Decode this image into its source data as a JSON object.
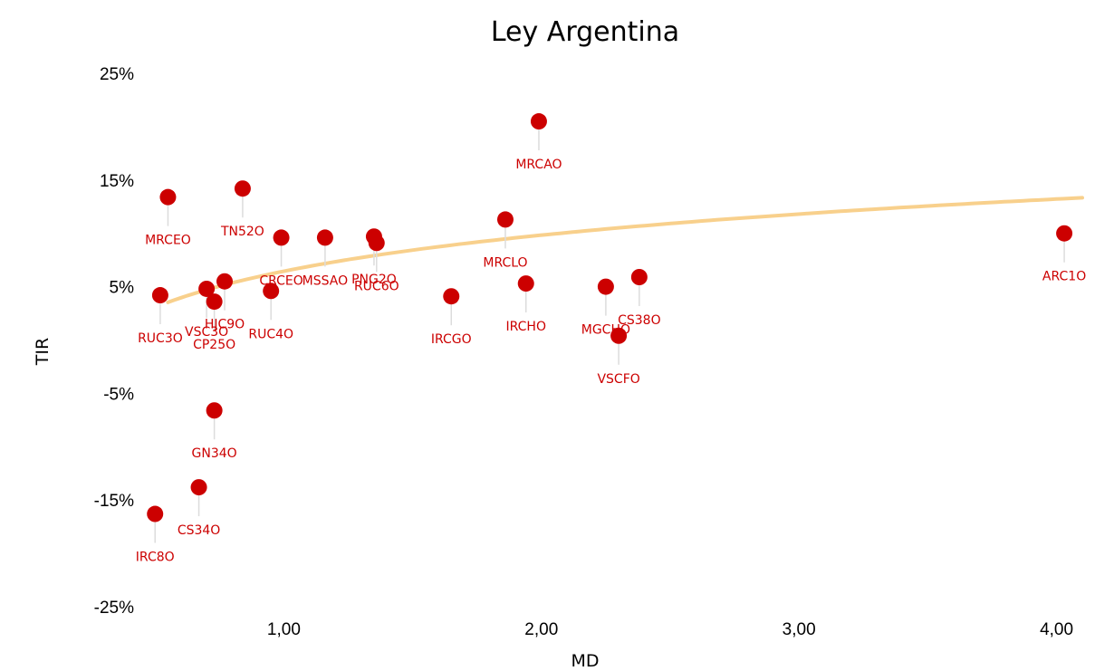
{
  "chart_data": {
    "type": "scatter",
    "title": "Ley Argentina",
    "xlabel": "MD",
    "ylabel": "TIR",
    "xlim": [
      0.45,
      4.1
    ],
    "ylim": [
      -25,
      25
    ],
    "x_ticks": [
      1,
      2,
      3,
      4
    ],
    "x_tick_labels": [
      "1,00",
      "2,00",
      "3,00",
      "4,00"
    ],
    "y_ticks": [
      -25,
      -15,
      -5,
      5,
      15,
      25
    ],
    "y_tick_labels": [
      "-25%",
      "-15%",
      "-5%",
      "5%",
      "15%",
      "25%"
    ],
    "grid": false,
    "legend": "none",
    "point_color": "#cc0000",
    "trend_color": "#f8d08c",
    "trend": {
      "type": "logarithmic",
      "a": 6.45,
      "b": 4.88
    },
    "points": [
      {
        "label": "MRCEO",
        "x": 0.55,
        "y": 13.4,
        "label_pos": "below"
      },
      {
        "label": "RUC3O",
        "x": 0.52,
        "y": 4.2,
        "label_pos": "below"
      },
      {
        "label": "IRC8O",
        "x": 0.5,
        "y": -16.3,
        "label_pos": "below"
      },
      {
        "label": "CS34O",
        "x": 0.67,
        "y": -13.8,
        "label_pos": "below"
      },
      {
        "label": "GN34O",
        "x": 0.73,
        "y": -6.6,
        "label_pos": "below"
      },
      {
        "label": "VSC3O",
        "x": 0.7,
        "y": 4.8,
        "label_pos": "below"
      },
      {
        "label": "CP25O",
        "x": 0.73,
        "y": 3.6,
        "label_pos": "below"
      },
      {
        "label": "HJC9O",
        "x": 0.77,
        "y": 5.5,
        "label_pos": "below"
      },
      {
        "label": "TN52O",
        "x": 0.84,
        "y": 14.2,
        "label_pos": "below"
      },
      {
        "label": "RUC4O",
        "x": 0.95,
        "y": 4.6,
        "label_pos": "below"
      },
      {
        "label": "CRCEO",
        "x": 0.99,
        "y": 9.6,
        "label_pos": "below"
      },
      {
        "label": "MSSAO",
        "x": 1.16,
        "y": 9.6,
        "label_pos": "below"
      },
      {
        "label": "PNG2O",
        "x": 1.35,
        "y": 9.7,
        "label_pos": "below"
      },
      {
        "label": "RUC6O",
        "x": 1.36,
        "y": 9.1,
        "label_pos": "below"
      },
      {
        "label": "IRCGO",
        "x": 1.65,
        "y": 4.1,
        "label_pos": "below"
      },
      {
        "label": "MRCLO",
        "x": 1.86,
        "y": 11.3,
        "label_pos": "below"
      },
      {
        "label": "IRCHO",
        "x": 1.94,
        "y": 5.3,
        "label_pos": "below"
      },
      {
        "label": "MRCAO",
        "x": 1.99,
        "y": 20.5,
        "label_pos": "below"
      },
      {
        "label": "MGCHO",
        "x": 2.25,
        "y": 5.0,
        "label_pos": "below"
      },
      {
        "label": "VSCFO",
        "x": 2.3,
        "y": 0.4,
        "label_pos": "below"
      },
      {
        "label": "CS38O",
        "x": 2.38,
        "y": 5.9,
        "label_pos": "below"
      },
      {
        "label": "ARC1O",
        "x": 4.03,
        "y": 10.0,
        "label_pos": "below"
      }
    ]
  }
}
